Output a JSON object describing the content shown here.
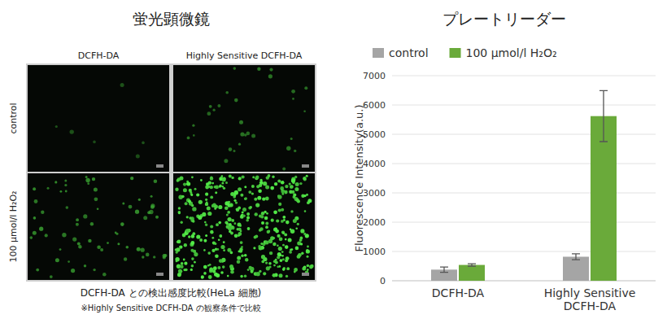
{
  "microscopy": {
    "title": "蛍光顕微鏡",
    "columns": [
      "DCFH-DA",
      "Highly Sensitive DCFH-DA"
    ],
    "rows": [
      "control",
      "100 μmol/l H₂O₂"
    ],
    "caption": "DCFH-DA との検出感度比較(HeLa 細胞)",
    "note": "※Highly Sensitive DCFH-DA の観察条件で比較"
  },
  "chart_data": {
    "type": "bar",
    "title": "プレートリーダー",
    "categories": [
      "DCFH-DA",
      "Highly Sensitive DCFH-DA"
    ],
    "series": [
      {
        "name": "control",
        "color": "#a5a5a5",
        "values": [
          380,
          820
        ],
        "errors": [
          90,
          100
        ]
      },
      {
        "name": "100 μmol/l H₂O₂",
        "color": "#6aaa3a",
        "values": [
          540,
          5620
        ],
        "errors": [
          40,
          870
        ]
      }
    ],
    "y_label": "Fluorescence Intensity(a.u.)",
    "ylim": [
      0,
      7000
    ],
    "yticks": [
      0,
      1000,
      2000,
      3000,
      4000,
      5000,
      6000,
      7000
    ],
    "grid": true,
    "legend": "top"
  }
}
